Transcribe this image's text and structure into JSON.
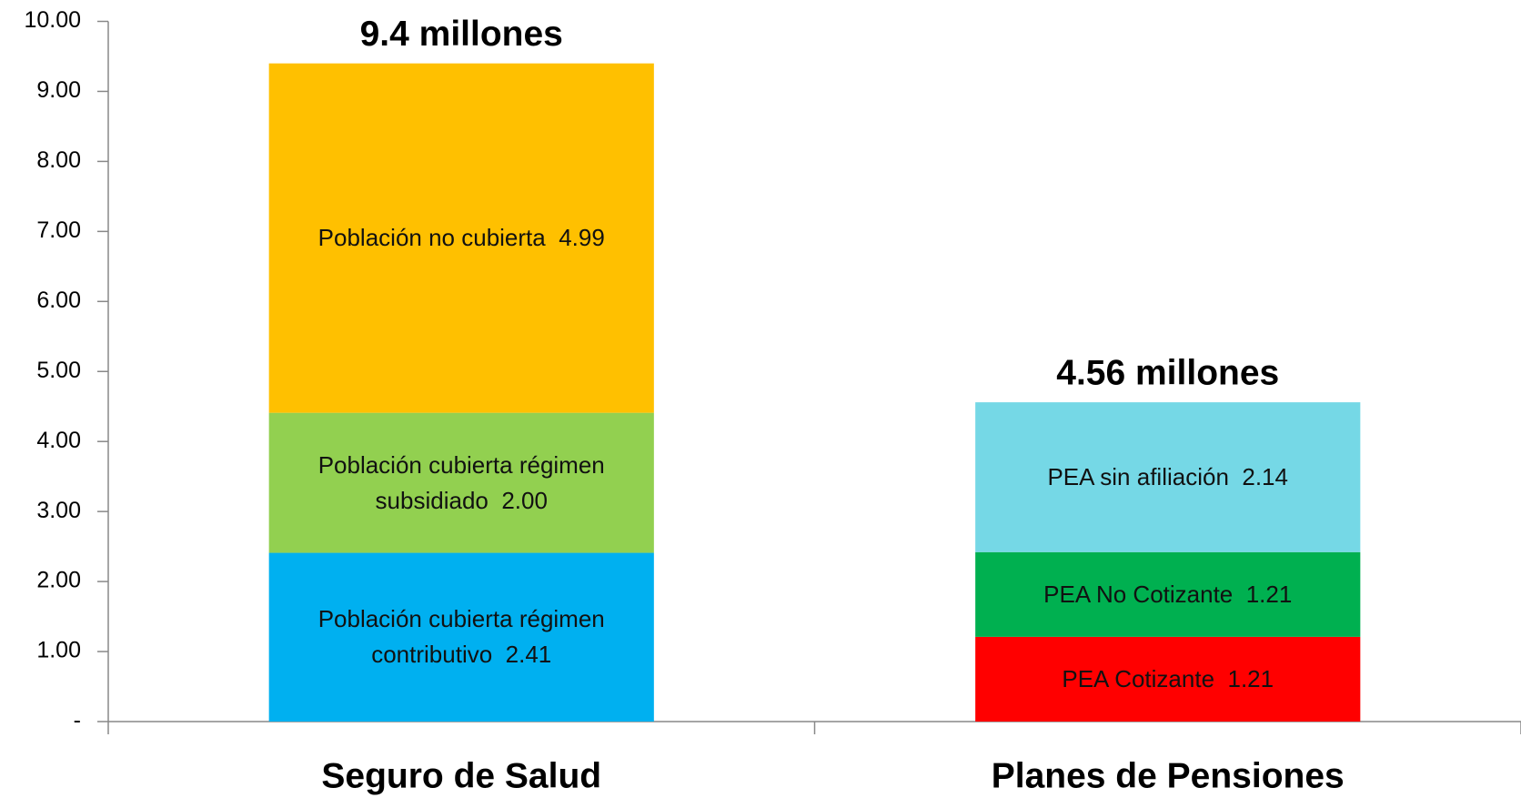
{
  "chart_data": {
    "type": "stacked_bar",
    "categories": [
      "Seguro de Salud",
      "Planes de Pensiones"
    ],
    "series": [
      {
        "name": "Población cubierta régimen contributivo",
        "color": "#00b0f0",
        "values": [
          2.41,
          null
        ],
        "value_labels": [
          "2.41",
          null
        ]
      },
      {
        "name": "Población cubierta régimen subsidiado",
        "color": "#92d050",
        "values": [
          2.0,
          null
        ],
        "value_labels": [
          "2.00",
          null
        ]
      },
      {
        "name": "Población no cubierta",
        "color": "#ffc000",
        "values": [
          4.99,
          null
        ],
        "value_labels": [
          "4.99",
          null
        ]
      },
      {
        "name": "PEA Cotizante",
        "color": "#ff0000",
        "values": [
          null,
          1.21
        ],
        "value_labels": [
          null,
          "1.21"
        ]
      },
      {
        "name": "PEA No Cotizante",
        "color": "#00b050",
        "values": [
          null,
          1.21
        ],
        "value_labels": [
          null,
          "1.21"
        ]
      },
      {
        "name": "PEA sin afiliación",
        "color": "#75d8e6",
        "values": [
          null,
          2.14
        ],
        "value_labels": [
          null,
          "2.14"
        ]
      }
    ],
    "annotations": [
      "9.4 millones",
      "4.56 millones"
    ],
    "ylim": [
      0,
      10
    ],
    "yticks": [
      {
        "value": 0,
        "label": "-"
      },
      {
        "value": 1,
        "label": "1.00"
      },
      {
        "value": 2,
        "label": "2.00"
      },
      {
        "value": 3,
        "label": "3.00"
      },
      {
        "value": 4,
        "label": "4.00"
      },
      {
        "value": 5,
        "label": "5.00"
      },
      {
        "value": 6,
        "label": "6.00"
      },
      {
        "value": 7,
        "label": "7.00"
      },
      {
        "value": 8,
        "label": "8.00"
      },
      {
        "value": 9,
        "label": "9.00"
      },
      {
        "value": {
          "value": 10,
          "label": "10.00"
        },
        "label": "10.00"
      }
    ]
  }
}
